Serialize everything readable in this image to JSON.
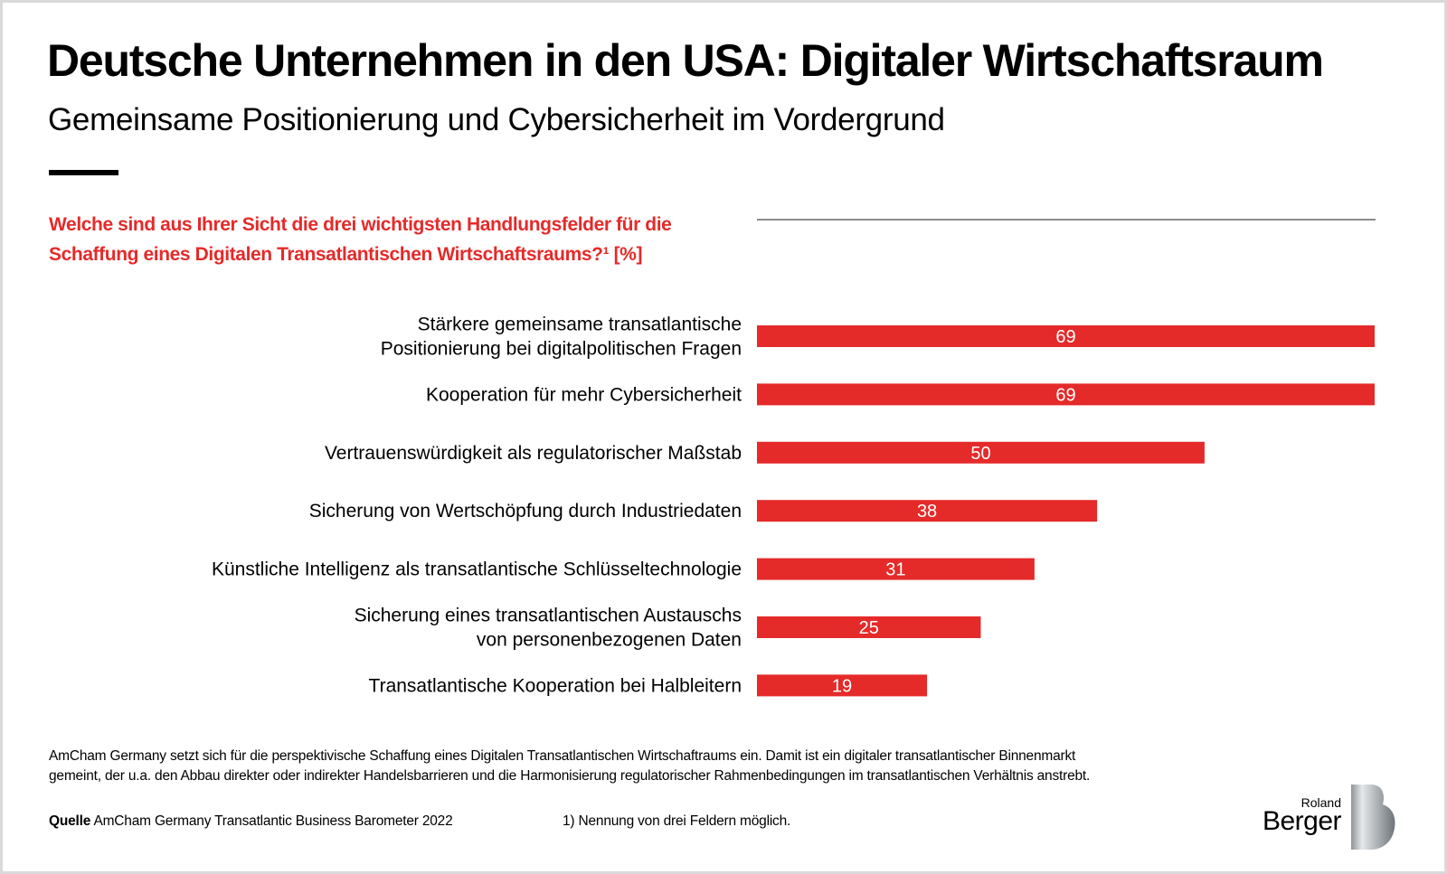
{
  "header": {
    "title": "Deutsche Unternehmen in den USA: Digitaler Wirtschaftsraum",
    "subtitle": "Gemeinsame Positionierung und Cybersicherheit im Vordergrund"
  },
  "question": {
    "line1": "Welche sind aus Ihrer Sicht die drei wichtigsten Handlungsfelder für die",
    "line2": "Schaffung eines Digitalen Transatlantischen Wirtschaftsraums?¹ [%]"
  },
  "colors": {
    "bar": "#e52a2a",
    "accent_text": "#e52a2a",
    "value_label": "#ffffff",
    "axis_line": "#8c8c8c"
  },
  "chart_data": {
    "type": "bar",
    "orientation": "horizontal",
    "title": "Welche sind aus Ihrer Sicht die drei wichtigsten Handlungsfelder für die Schaffung eines Digitalen Transatlantischen Wirtschaftsraums?¹ [%]",
    "xlabel": "",
    "ylabel": "",
    "unit": "%",
    "xlim": [
      0,
      69
    ],
    "grid": false,
    "legend": "none",
    "categories": [
      [
        "Stärkere gemeinsame transatlantische",
        "Positionierung bei digitalpolitischen Fragen"
      ],
      [
        "Kooperation für mehr Cybersicherheit"
      ],
      [
        "Vertrauenswürdigkeit als regulatorischer Maßstab"
      ],
      [
        "Sicherung von Wertschöpfung durch Industriedaten"
      ],
      [
        "Künstliche Intelligenz als transatlantische Schlüsseltechnologie"
      ],
      [
        "Sicherung eines transatlantischen Austauschs",
        "von personenbezogenen Daten"
      ],
      [
        "Transatlantische Kooperation bei Halbleitern"
      ]
    ],
    "values": [
      69,
      69,
      50,
      38,
      31,
      25,
      19
    ]
  },
  "footer": {
    "note_line1": "AmCham Germany setzt sich für die perspektivische Schaffung eines Digitalen Transatlantischen Wirtschaftraums ein. Damit ist ein digitaler transatlantischer Binnenmarkt",
    "note_line2": "gemeint, der u.a. den Abbau direkter oder indirekter Handelsbarrieren und die Harmonisierung regulatorischer Rahmenbedingungen im transatlantischen Verhältnis anstrebt.",
    "source_label": "Quelle",
    "source_text": " AmCham Germany Transatlantic Business Barometer 2022",
    "footnote": "1) Nennung von drei Feldern möglich."
  },
  "logo": {
    "line1": "Roland",
    "line2": "Berger",
    "icon": "roland-berger-b-mark"
  }
}
